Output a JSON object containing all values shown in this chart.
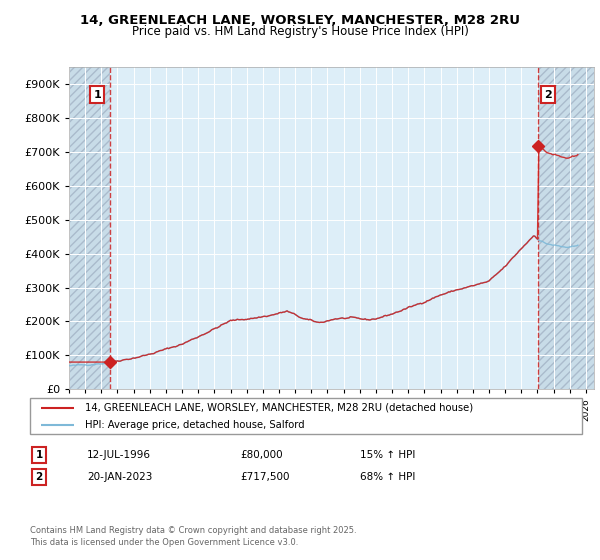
{
  "title": "14, GREENLEACH LANE, WORSLEY, MANCHESTER, M28 2RU",
  "subtitle": "Price paid vs. HM Land Registry's House Price Index (HPI)",
  "legend_label1": "14, GREENLEACH LANE, WORSLEY, MANCHESTER, M28 2RU (detached house)",
  "legend_label2": "HPI: Average price, detached house, Salford",
  "annotation1_date": "12-JUL-1996",
  "annotation1_price": "£80,000",
  "annotation1_hpi": "15% ↑ HPI",
  "annotation2_date": "20-JAN-2023",
  "annotation2_price": "£717,500",
  "annotation2_hpi": "68% ↑ HPI",
  "footer": "Contains HM Land Registry data © Crown copyright and database right 2025.\nThis data is licensed under the Open Government Licence v3.0.",
  "sale1_year": 1996.54,
  "sale1_price": 80000,
  "sale2_year": 2023.05,
  "sale2_price": 717500,
  "hpi_color": "#7eb9d8",
  "sale_color": "#cc2222",
  "ylim_max": 950000,
  "ylim_min": 0,
  "xlim_min": 1994.0,
  "xlim_max": 2026.5,
  "background_color": "#ddeeff"
}
